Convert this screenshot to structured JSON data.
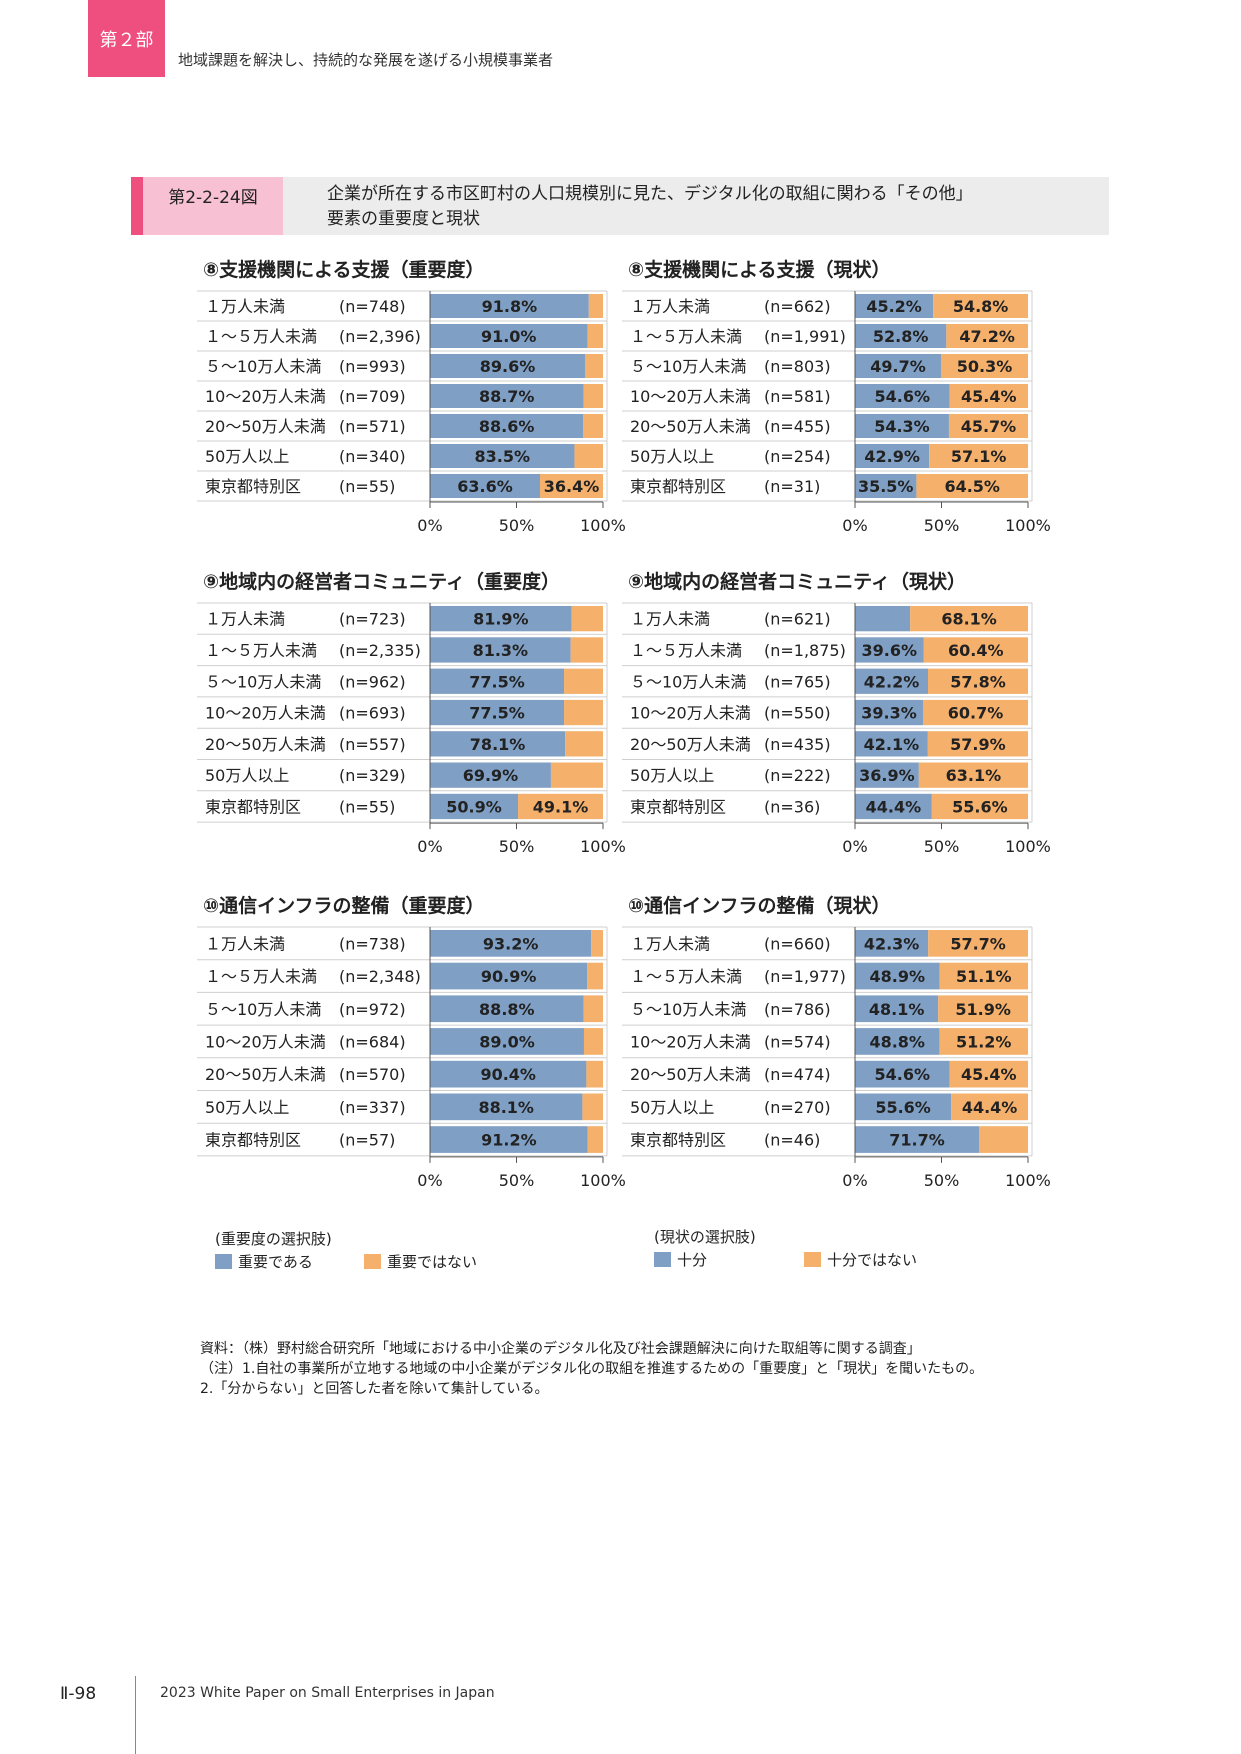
{
  "header": {
    "part": "第２部",
    "part_title": "地域課題を解決し、持続的な発展を遂げる小規模事業者"
  },
  "figure": {
    "number": "第2-2-24図",
    "title_line1": "企業が所在する市区町村の人口規模別に見た、デジタル化の取組に関わる「その他」",
    "title_line2": "要素の重要度と現状"
  },
  "colors": {
    "blue": "#7f9fc4",
    "orange": "#f5b06b"
  },
  "chart_data": [
    {
      "type": "bar",
      "stacked": true,
      "orientation": "horizontal",
      "title": "⑧支援機関による支援（重要度）",
      "categories": [
        "１万人未満",
        "１～５万人未満",
        "５～10万人未満",
        "10～20万人未満",
        "20～50万人未満",
        "50万人以上",
        "東京都特別区"
      ],
      "n_labels": [
        "(n=748)",
        "(n=2,396)",
        "(n=993)",
        "(n=709)",
        "(n=571)",
        "(n=340)",
        "(n=55)"
      ],
      "series": [
        {
          "name": "重要である",
          "values": [
            91.8,
            91.0,
            89.6,
            88.7,
            88.6,
            83.5,
            63.6
          ]
        },
        {
          "name": "重要ではない",
          "values": [
            8.2,
            9.0,
            10.4,
            11.3,
            11.4,
            16.5,
            36.4
          ]
        }
      ],
      "labels": [
        [
          "91.8%",
          ""
        ],
        [
          "91.0%",
          ""
        ],
        [
          "89.6%",
          ""
        ],
        [
          "88.7%",
          ""
        ],
        [
          "88.6%",
          ""
        ],
        [
          "83.5%",
          ""
        ],
        [
          "63.6%",
          "36.4%"
        ]
      ],
      "xticks": [
        "0%",
        "50%",
        "100%"
      ],
      "xlim": [
        0,
        100
      ]
    },
    {
      "type": "bar",
      "stacked": true,
      "orientation": "horizontal",
      "title": "⑧支援機関による支援（現状）",
      "categories": [
        "１万人未満",
        "１～５万人未満",
        "５～10万人未満",
        "10～20万人未満",
        "20～50万人未満",
        "50万人以上",
        "東京都特別区"
      ],
      "n_labels": [
        "(n=662)",
        "(n=1,991)",
        "(n=803)",
        "(n=581)",
        "(n=455)",
        "(n=254)",
        "(n=31)"
      ],
      "series": [
        {
          "name": "十分",
          "values": [
            45.2,
            52.8,
            49.7,
            54.6,
            54.3,
            42.9,
            35.5
          ]
        },
        {
          "name": "十分ではない",
          "values": [
            54.8,
            47.2,
            50.3,
            45.4,
            45.7,
            57.1,
            64.5
          ]
        }
      ],
      "labels": [
        [
          "45.2%",
          "54.8%"
        ],
        [
          "52.8%",
          "47.2%"
        ],
        [
          "49.7%",
          "50.3%"
        ],
        [
          "54.6%",
          "45.4%"
        ],
        [
          "54.3%",
          "45.7%"
        ],
        [
          "42.9%",
          "57.1%"
        ],
        [
          "35.5%",
          "64.5%"
        ]
      ],
      "xticks": [
        "0%",
        "50%",
        "100%"
      ],
      "xlim": [
        0,
        100
      ]
    },
    {
      "type": "bar",
      "stacked": true,
      "orientation": "horizontal",
      "title": "⑨地域内の経営者コミュニティ（重要度）",
      "categories": [
        "１万人未満",
        "１～５万人未満",
        "５～10万人未満",
        "10～20万人未満",
        "20～50万人未満",
        "50万人以上",
        "東京都特別区"
      ],
      "n_labels": [
        "(n=723)",
        "(n=2,335)",
        "(n=962)",
        "(n=693)",
        "(n=557)",
        "(n=329)",
        "(n=55)"
      ],
      "series": [
        {
          "name": "重要である",
          "values": [
            81.9,
            81.3,
            77.5,
            77.5,
            78.1,
            69.9,
            50.9
          ]
        },
        {
          "name": "重要ではない",
          "values": [
            18.1,
            18.7,
            22.5,
            22.5,
            21.9,
            30.1,
            49.1
          ]
        }
      ],
      "labels": [
        [
          "81.9%",
          ""
        ],
        [
          "81.3%",
          ""
        ],
        [
          "77.5%",
          ""
        ],
        [
          "77.5%",
          ""
        ],
        [
          "78.1%",
          ""
        ],
        [
          "69.9%",
          ""
        ],
        [
          "50.9%",
          "49.1%"
        ]
      ],
      "xticks": [
        "0%",
        "50%",
        "100%"
      ],
      "xlim": [
        0,
        100
      ]
    },
    {
      "type": "bar",
      "stacked": true,
      "orientation": "horizontal",
      "title": "⑨地域内の経営者コミュニティ（現状）",
      "categories": [
        "１万人未満",
        "１～５万人未満",
        "５～10万人未満",
        "10～20万人未満",
        "20～50万人未満",
        "50万人以上",
        "東京都特別区"
      ],
      "n_labels": [
        "(n=621)",
        "(n=1,875)",
        "(n=765)",
        "(n=550)",
        "(n=435)",
        "(n=222)",
        "(n=36)"
      ],
      "series": [
        {
          "name": "十分",
          "values": [
            31.9,
            39.6,
            42.2,
            39.3,
            42.1,
            36.9,
            44.4
          ]
        },
        {
          "name": "十分ではない",
          "values": [
            68.1,
            60.4,
            57.8,
            60.7,
            57.9,
            63.1,
            55.6
          ]
        }
      ],
      "labels": [
        [
          "",
          "68.1%"
        ],
        [
          "39.6%",
          "60.4%"
        ],
        [
          "42.2%",
          "57.8%"
        ],
        [
          "39.3%",
          "60.7%"
        ],
        [
          "42.1%",
          "57.9%"
        ],
        [
          "36.9%",
          "63.1%"
        ],
        [
          "44.4%",
          "55.6%"
        ]
      ],
      "xticks": [
        "0%",
        "50%",
        "100%"
      ],
      "xlim": [
        0,
        100
      ]
    },
    {
      "type": "bar",
      "stacked": true,
      "orientation": "horizontal",
      "title": "⑩通信インフラの整備（重要度）",
      "categories": [
        "１万人未満",
        "１～５万人未満",
        "５～10万人未満",
        "10～20万人未満",
        "20～50万人未満",
        "50万人以上",
        "東京都特別区"
      ],
      "n_labels": [
        "(n=738)",
        "(n=2,348)",
        "(n=972)",
        "(n=684)",
        "(n=570)",
        "(n=337)",
        "(n=57)"
      ],
      "series": [
        {
          "name": "重要である",
          "values": [
            93.2,
            90.9,
            88.8,
            89.0,
            90.4,
            88.1,
            91.2
          ]
        },
        {
          "name": "重要ではない",
          "values": [
            6.8,
            9.1,
            11.2,
            11.0,
            9.6,
            11.9,
            8.8
          ]
        }
      ],
      "labels": [
        [
          "93.2%",
          ""
        ],
        [
          "90.9%",
          ""
        ],
        [
          "88.8%",
          ""
        ],
        [
          "89.0%",
          ""
        ],
        [
          "90.4%",
          ""
        ],
        [
          "88.1%",
          ""
        ],
        [
          "91.2%",
          ""
        ]
      ],
      "xticks": [
        "0%",
        "50%",
        "100%"
      ],
      "xlim": [
        0,
        100
      ]
    },
    {
      "type": "bar",
      "stacked": true,
      "orientation": "horizontal",
      "title": "⑩通信インフラの整備（現状）",
      "categories": [
        "１万人未満",
        "１～５万人未満",
        "５～10万人未満",
        "10～20万人未満",
        "20～50万人未満",
        "50万人以上",
        "東京都特別区"
      ],
      "n_labels": [
        "(n=660)",
        "(n=1,977)",
        "(n=786)",
        "(n=574)",
        "(n=474)",
        "(n=270)",
        "(n=46)"
      ],
      "series": [
        {
          "name": "十分",
          "values": [
            42.3,
            48.9,
            48.1,
            48.8,
            54.6,
            55.6,
            71.7
          ]
        },
        {
          "name": "十分ではない",
          "values": [
            57.7,
            51.1,
            51.9,
            51.2,
            45.4,
            44.4,
            28.3
          ]
        }
      ],
      "labels": [
        [
          "42.3%",
          "57.7%"
        ],
        [
          "48.9%",
          "51.1%"
        ],
        [
          "48.1%",
          "51.9%"
        ],
        [
          "48.8%",
          "51.2%"
        ],
        [
          "54.6%",
          "45.4%"
        ],
        [
          "55.6%",
          "44.4%"
        ],
        [
          "71.7%",
          ""
        ]
      ],
      "xticks": [
        "0%",
        "50%",
        "100%"
      ],
      "xlim": [
        0,
        100
      ]
    }
  ],
  "legend_importance": {
    "caption": "(重要度の選択肢)",
    "items": [
      "重要である",
      "重要ではない"
    ]
  },
  "legend_current": {
    "caption": "(現状の選択肢)",
    "items": [
      "十分",
      "十分ではない"
    ]
  },
  "notes": {
    "source": "資料：（株）野村総合研究所「地域における中小企業のデジタル化及び社会課題解決に向けた取組等に関する調査」",
    "note1": "（注）1.自社の事業所が立地する地域の中小企業がデジタル化の取組を推進するための「重要度」と「現状」を聞いたもの。",
    "note2": "2.「分からない」と回答した者を除いて集計している。"
  },
  "footer": {
    "page": "Ⅱ-98",
    "text": "2023 White Paper on Small Enterprises in Japan"
  }
}
